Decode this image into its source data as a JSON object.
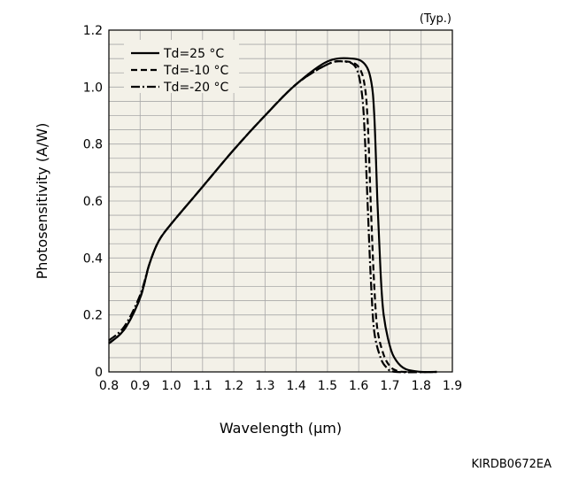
{
  "chart_data": {
    "type": "line",
    "annotation": "(Typ.)",
    "xlabel": "Wavelength (µm)",
    "ylabel": "Photosensitivity (A/W)",
    "xlim": [
      0.8,
      1.9
    ],
    "ylim": [
      0,
      1.2
    ],
    "x_ticks": [
      "0.8",
      "0.9",
      "1.0",
      "1.1",
      "1.2",
      "1.3",
      "1.4",
      "1.5",
      "1.6",
      "1.7",
      "1.8",
      "1.9"
    ],
    "y_ticks": [
      "0",
      "0.2",
      "0.4",
      "0.6",
      "0.8",
      "1.0",
      "1.2"
    ],
    "grid": true,
    "legend_position": "top-left",
    "plot_background": "#f3f1e8",
    "series": [
      {
        "name": "Td=25 °C",
        "style": "solid",
        "points": [
          [
            0.8,
            0.1
          ],
          [
            0.85,
            0.15
          ],
          [
            0.9,
            0.26
          ],
          [
            0.93,
            0.38
          ],
          [
            0.96,
            0.46
          ],
          [
            1.0,
            0.52
          ],
          [
            1.1,
            0.65
          ],
          [
            1.2,
            0.78
          ],
          [
            1.3,
            0.9
          ],
          [
            1.4,
            1.01
          ],
          [
            1.5,
            1.09
          ],
          [
            1.58,
            1.1
          ],
          [
            1.62,
            1.08
          ],
          [
            1.64,
            1.02
          ],
          [
            1.65,
            0.9
          ],
          [
            1.66,
            0.6
          ],
          [
            1.67,
            0.35
          ],
          [
            1.68,
            0.2
          ],
          [
            1.7,
            0.09
          ],
          [
            1.72,
            0.04
          ],
          [
            1.75,
            0.01
          ],
          [
            1.8,
            0.0
          ],
          [
            1.85,
            0.0
          ]
        ]
      },
      {
        "name": "Td=-10 °C",
        "style": "dashed",
        "points": [
          [
            0.8,
            0.1
          ],
          [
            0.85,
            0.15
          ],
          [
            0.9,
            0.26
          ],
          [
            0.93,
            0.38
          ],
          [
            0.96,
            0.46
          ],
          [
            1.0,
            0.52
          ],
          [
            1.1,
            0.65
          ],
          [
            1.2,
            0.78
          ],
          [
            1.3,
            0.9
          ],
          [
            1.4,
            1.01
          ],
          [
            1.5,
            1.08
          ],
          [
            1.56,
            1.09
          ],
          [
            1.6,
            1.07
          ],
          [
            1.62,
            1.0
          ],
          [
            1.63,
            0.85
          ],
          [
            1.64,
            0.55
          ],
          [
            1.65,
            0.3
          ],
          [
            1.66,
            0.15
          ],
          [
            1.68,
            0.06
          ],
          [
            1.7,
            0.02
          ],
          [
            1.72,
            0.005
          ],
          [
            1.75,
            0.0
          ],
          [
            1.85,
            0.0
          ]
        ]
      },
      {
        "name": "Td=-20 °C",
        "style": "dash-dot",
        "points": [
          [
            0.8,
            0.11
          ],
          [
            0.85,
            0.16
          ],
          [
            0.9,
            0.27
          ],
          [
            0.93,
            0.38
          ],
          [
            0.96,
            0.46
          ],
          [
            1.0,
            0.52
          ],
          [
            1.1,
            0.65
          ],
          [
            1.2,
            0.78
          ],
          [
            1.3,
            0.9
          ],
          [
            1.4,
            1.01
          ],
          [
            1.5,
            1.08
          ],
          [
            1.55,
            1.09
          ],
          [
            1.59,
            1.07
          ],
          [
            1.61,
            0.98
          ],
          [
            1.62,
            0.82
          ],
          [
            1.63,
            0.55
          ],
          [
            1.64,
            0.3
          ],
          [
            1.65,
            0.14
          ],
          [
            1.67,
            0.05
          ],
          [
            1.69,
            0.015
          ],
          [
            1.72,
            0.0
          ],
          [
            1.85,
            0.0
          ]
        ]
      }
    ]
  },
  "figure_code": "KIRDB0672EA"
}
